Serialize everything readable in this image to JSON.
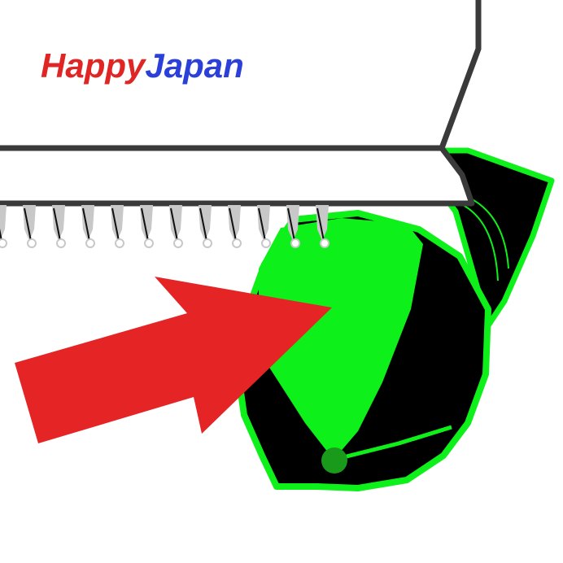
{
  "brand": {
    "word1": "Happy",
    "word2": "Japan",
    "word1_color": "#e02525",
    "word2_color": "#2b3fd9"
  },
  "colors": {
    "arrow": "#e52525",
    "arrow_direction": "right",
    "leaf_green": "#0ef01a",
    "leaf_dark": "#000000",
    "stem_dot": "#1a9a1a",
    "device_outline": "#3a3a3a",
    "device_fill": "#ffffff",
    "teeth": "#c8c8c8"
  },
  "icons": {
    "device": "label-printer-icon",
    "arrow": "right-arrow-icon",
    "object": "green-leaf-bundle-icon"
  }
}
